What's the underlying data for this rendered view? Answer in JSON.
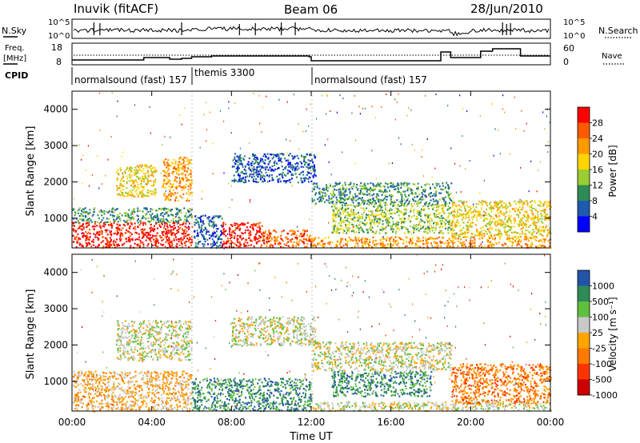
{
  "header": {
    "station": "Inuvik (fitACF)",
    "beam": "Beam 06",
    "date": "28/Jun/2010"
  },
  "panels": {
    "nsky": {
      "left_label": "N.Sky",
      "right_label": "N.Search",
      "left_ticks": [
        "10^5",
        "10^0"
      ],
      "right_ticks": [
        "10^5",
        "10^0"
      ]
    },
    "freq": {
      "left_label_line1": "Freq.",
      "left_label_line2": "[MHz]",
      "right_label": "Nave",
      "left_ticks": [
        "18",
        "8"
      ],
      "right_ticks": [
        "60",
        "0"
      ]
    },
    "cpid": {
      "label": "CPID",
      "segments": [
        {
          "start": 0,
          "end": 6,
          "name": "normalsound (fast) 157"
        },
        {
          "start": 6,
          "end": 12,
          "name": "themis 3300"
        },
        {
          "start": 12,
          "end": 24,
          "name": "normalsound (fast) 157"
        }
      ]
    }
  },
  "chart_data": [
    {
      "type": "heatmap",
      "name": "power",
      "ylabel": "Slant Range [km]",
      "xlabel": "",
      "xlim": [
        0,
        24
      ],
      "ylim": [
        180,
        4500
      ],
      "yticks": [
        1000,
        2000,
        3000,
        4000
      ],
      "colorbar": {
        "label": "Power [dB]",
        "ticks": [
          "28",
          "24",
          "20",
          "16",
          "12",
          "8",
          "4"
        ],
        "colors": [
          "#ff0000",
          "#ff5a00",
          "#ff9a00",
          "#ffd400",
          "#9acd32",
          "#2e8b57",
          "#1e5aaf",
          "#0000ff"
        ]
      },
      "regions": [
        {
          "x0": 0,
          "x1": 6,
          "y0": 200,
          "y1": 900,
          "level": 0
        },
        {
          "x0": 0,
          "x1": 6,
          "y0": 900,
          "y1": 1300,
          "level": 5
        },
        {
          "x0": 2.2,
          "x1": 4.2,
          "y0": 1600,
          "y1": 2500,
          "level": 3
        },
        {
          "x0": 4.5,
          "x1": 6,
          "y0": 1500,
          "y1": 2700,
          "level": 2
        },
        {
          "x0": 6.1,
          "x1": 7.5,
          "y0": 200,
          "y1": 1100,
          "level": 6
        },
        {
          "x0": 7.5,
          "x1": 9.5,
          "y0": 200,
          "y1": 900,
          "level": 0
        },
        {
          "x0": 9.5,
          "x1": 12,
          "y0": 200,
          "y1": 700,
          "level": 1
        },
        {
          "x0": 8,
          "x1": 12.2,
          "y0": 2000,
          "y1": 2800,
          "level": 6
        },
        {
          "x0": 12,
          "x1": 19,
          "y0": 1400,
          "y1": 2000,
          "level": 5
        },
        {
          "x0": 13,
          "x1": 19,
          "y0": 600,
          "y1": 1400,
          "level": 4
        },
        {
          "x0": 12,
          "x1": 24,
          "y0": 200,
          "y1": 500,
          "level": 2
        },
        {
          "x0": 19,
          "x1": 24,
          "y0": 500,
          "y1": 1500,
          "level": 3
        }
      ]
    },
    {
      "type": "heatmap",
      "name": "velocity",
      "ylabel": "Slant Range [km]",
      "xlabel": "Time UT",
      "xlim": [
        0,
        24
      ],
      "ylim": [
        180,
        4500
      ],
      "yticks": [
        1000,
        2000,
        3000,
        4000
      ],
      "xticks": [
        "00:00",
        "04:00",
        "08:00",
        "12:00",
        "16:00",
        "20:00",
        "00:00"
      ],
      "colorbar": {
        "label": "Velocity [m s⁻¹]",
        "ticks": [
          "1000",
          "500",
          "100",
          "25",
          "-25",
          "-100",
          "-500",
          "-1000"
        ],
        "colors": [
          "#2255aa",
          "#2e8b57",
          "#5fbf3f",
          "#c8c8c8",
          "#ffa500",
          "#ff7a00",
          "#ff3300",
          "#cc0000"
        ]
      },
      "regions": [
        {
          "x0": 0,
          "x1": 6,
          "y0": 200,
          "y1": 1300,
          "level": 4
        },
        {
          "x0": 2.2,
          "x1": 6,
          "y0": 1600,
          "y1": 2700,
          "level": 3
        },
        {
          "x0": 6,
          "x1": 12,
          "y0": 200,
          "y1": 1100,
          "level": 1
        },
        {
          "x0": 8,
          "x1": 12.2,
          "y0": 2000,
          "y1": 2800,
          "level": 3
        },
        {
          "x0": 12,
          "x1": 19,
          "y0": 1300,
          "y1": 2100,
          "level": 3
        },
        {
          "x0": 13,
          "x1": 18,
          "y0": 600,
          "y1": 1300,
          "level": 1
        },
        {
          "x0": 12,
          "x1": 24,
          "y0": 200,
          "y1": 450,
          "level": 3
        },
        {
          "x0": 19,
          "x1": 24,
          "y0": 400,
          "y1": 1500,
          "level": 5
        }
      ]
    }
  ]
}
